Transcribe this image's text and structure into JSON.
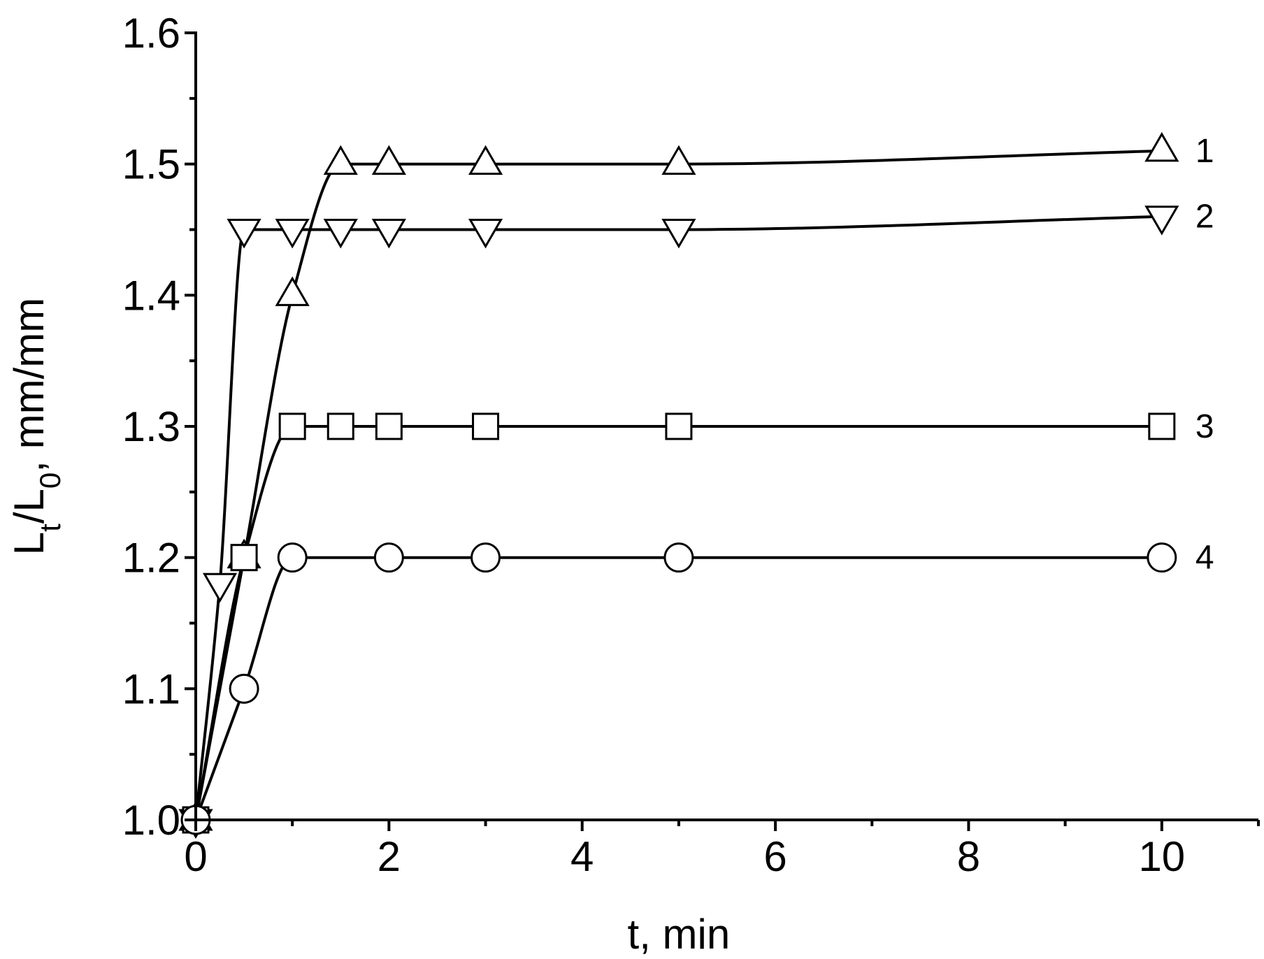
{
  "chart_data": {
    "type": "line",
    "xlabel": "t, min",
    "ylabel": {
      "parts": [
        {
          "text": "L",
          "sub": false
        },
        {
          "text": "t",
          "sub": true
        },
        {
          "text": "/L",
          "sub": false
        },
        {
          "text": "0",
          "sub": true
        },
        {
          "text": ", mm/mm",
          "sub": false
        }
      ]
    },
    "xlim": [
      0,
      11
    ],
    "ylim": [
      1.0,
      1.6
    ],
    "xticks": [
      0,
      2,
      4,
      6,
      8,
      10
    ],
    "xtick_labels": [
      "0",
      "2",
      "4",
      "6",
      "8",
      "10"
    ],
    "yticks": [
      1.0,
      1.1,
      1.2,
      1.3,
      1.4,
      1.5,
      1.6
    ],
    "ytick_labels": [
      "1.0",
      "1.1",
      "1.2",
      "1.3",
      "1.4",
      "1.5",
      "1.6"
    ],
    "grid": false,
    "series": [
      {
        "label": "1",
        "marker": "triangle-up",
        "x": [
          0,
          0.5,
          1,
          1.5,
          2,
          3,
          5,
          10
        ],
        "y": [
          1.0,
          1.2,
          1.4,
          1.5,
          1.5,
          1.5,
          1.5,
          1.51
        ]
      },
      {
        "label": "2",
        "marker": "triangle-down",
        "x": [
          0,
          0.25,
          0.5,
          1,
          1.5,
          2,
          3,
          5,
          10
        ],
        "y": [
          1.0,
          1.18,
          1.45,
          1.45,
          1.45,
          1.45,
          1.45,
          1.45,
          1.46
        ]
      },
      {
        "label": "3",
        "marker": "square",
        "x": [
          0,
          0.5,
          1,
          1.5,
          2,
          3,
          5,
          10
        ],
        "y": [
          1.0,
          1.2,
          1.3,
          1.3,
          1.3,
          1.3,
          1.3,
          1.3
        ]
      },
      {
        "label": "4",
        "marker": "circle",
        "x": [
          0,
          0.5,
          1,
          2,
          3,
          5,
          10
        ],
        "y": [
          1.0,
          1.1,
          1.2,
          1.2,
          1.2,
          1.2,
          1.2
        ]
      }
    ]
  }
}
